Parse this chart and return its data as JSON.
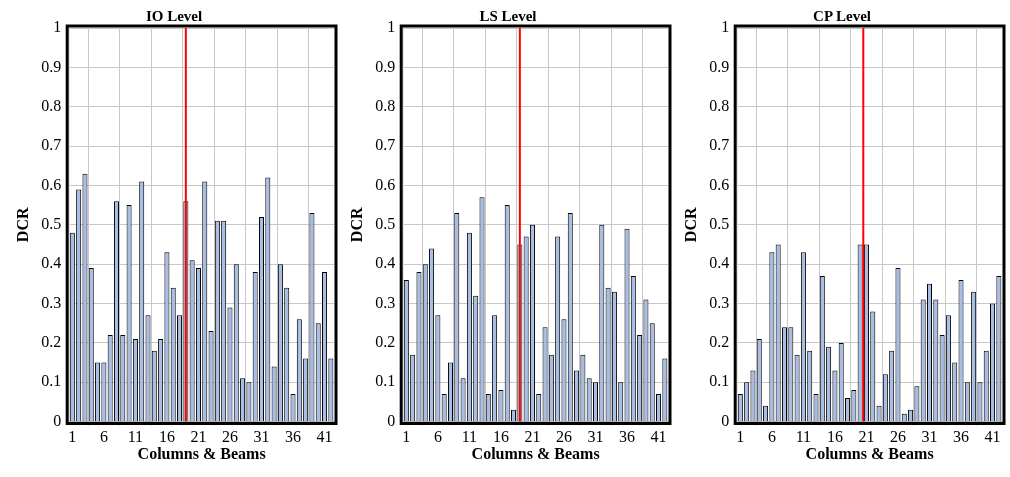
{
  "chart_data": [
    {
      "type": "bar",
      "title": "IO Level",
      "xlabel": "Columns & Beams",
      "ylabel": "DCR",
      "color": "#a7bde4",
      "grid": true,
      "ylim": [
        0,
        1
      ],
      "yticks": [
        0,
        0.1,
        0.2,
        0.3,
        0.4,
        0.5,
        0.6,
        0.7,
        0.8,
        0.9,
        1
      ],
      "xlim": [
        0.5,
        42.5
      ],
      "xticks": [
        1,
        6,
        11,
        16,
        21,
        26,
        31,
        36,
        41
      ],
      "x": [
        1,
        2,
        3,
        4,
        5,
        6,
        7,
        8,
        9,
        10,
        11,
        12,
        13,
        14,
        15,
        16,
        17,
        18,
        19,
        20,
        21,
        22,
        23,
        24,
        25,
        26,
        27,
        28,
        29,
        30,
        31,
        32,
        33,
        34,
        35,
        36,
        37,
        38,
        39,
        40,
        41,
        42
      ],
      "values": [
        0.48,
        0.59,
        0.63,
        0.39,
        0.15,
        0.15,
        0.22,
        0.56,
        0.22,
        0.55,
        0.21,
        0.61,
        0.27,
        0.18,
        0.21,
        0.43,
        0.34,
        0.27,
        0.56,
        0.41,
        0.39,
        0.61,
        0.23,
        0.51,
        0.51,
        0.29,
        0.4,
        0.11,
        0.1,
        0.38,
        0.52,
        0.62,
        0.14,
        0.4,
        0.34,
        0.07,
        0.26,
        0.16,
        0.53,
        0.25,
        0.38,
        0.16
      ],
      "ref_lines": [
        {
          "axis": "x",
          "value": 19,
          "color": "#ff0000"
        }
      ]
    },
    {
      "type": "bar",
      "title": "LS Level",
      "xlabel": "Columns & Beams",
      "ylabel": "DCR",
      "color": "#a7bde4",
      "grid": true,
      "ylim": [
        0,
        1
      ],
      "yticks": [
        0,
        0.1,
        0.2,
        0.3,
        0.4,
        0.5,
        0.6,
        0.7,
        0.8,
        0.9,
        1
      ],
      "xlim": [
        0.5,
        42.5
      ],
      "xticks": [
        1,
        6,
        11,
        16,
        21,
        26,
        31,
        36,
        41
      ],
      "x": [
        1,
        2,
        3,
        4,
        5,
        6,
        7,
        8,
        9,
        10,
        11,
        12,
        13,
        14,
        15,
        16,
        17,
        18,
        19,
        20,
        21,
        22,
        23,
        24,
        25,
        26,
        27,
        28,
        29,
        30,
        31,
        32,
        33,
        34,
        35,
        36,
        37,
        38,
        39,
        40,
        41,
        42
      ],
      "values": [
        0.36,
        0.17,
        0.38,
        0.4,
        0.44,
        0.27,
        0.07,
        0.15,
        0.53,
        0.11,
        0.48,
        0.32,
        0.57,
        0.07,
        0.27,
        0.08,
        0.55,
        0.03,
        0.45,
        0.47,
        0.5,
        0.07,
        0.24,
        0.17,
        0.47,
        0.26,
        0.53,
        0.13,
        0.17,
        0.11,
        0.1,
        0.5,
        0.34,
        0.33,
        0.1,
        0.49,
        0.37,
        0.22,
        0.31,
        0.25,
        0.07,
        0.16
      ],
      "ref_lines": [
        {
          "axis": "x",
          "value": 19,
          "color": "#ff0000"
        }
      ]
    },
    {
      "type": "bar",
      "title": "CP Level",
      "xlabel": "Columns & Beams",
      "ylabel": "DCR",
      "color": "#a7bde4",
      "grid": true,
      "ylim": [
        0,
        1
      ],
      "yticks": [
        0,
        0.1,
        0.2,
        0.3,
        0.4,
        0.5,
        0.6,
        0.7,
        0.8,
        0.9,
        1
      ],
      "xlim": [
        0.5,
        42.5
      ],
      "xticks": [
        1,
        6,
        11,
        16,
        21,
        26,
        31,
        36,
        41
      ],
      "x": [
        1,
        2,
        3,
        4,
        5,
        6,
        7,
        8,
        9,
        10,
        11,
        12,
        13,
        14,
        15,
        16,
        17,
        18,
        19,
        20,
        21,
        22,
        23,
        24,
        25,
        26,
        27,
        28,
        29,
        30,
        31,
        32,
        33,
        34,
        35,
        36,
        37,
        38,
        39,
        40,
        41,
        42
      ],
      "values": [
        0.07,
        0.1,
        0.13,
        0.21,
        0.04,
        0.43,
        0.45,
        0.24,
        0.24,
        0.17,
        0.43,
        0.18,
        0.07,
        0.37,
        0.19,
        0.13,
        0.2,
        0.06,
        0.08,
        0.45,
        0.45,
        0.28,
        0.04,
        0.12,
        0.18,
        0.39,
        0.02,
        0.03,
        0.09,
        0.31,
        0.35,
        0.31,
        0.22,
        0.27,
        0.15,
        0.36,
        0.1,
        0.33,
        0.1,
        0.18,
        0.3,
        0.37
      ],
      "ref_lines": [
        {
          "axis": "x",
          "value": 20.5,
          "color": "#ff0000"
        }
      ]
    }
  ]
}
